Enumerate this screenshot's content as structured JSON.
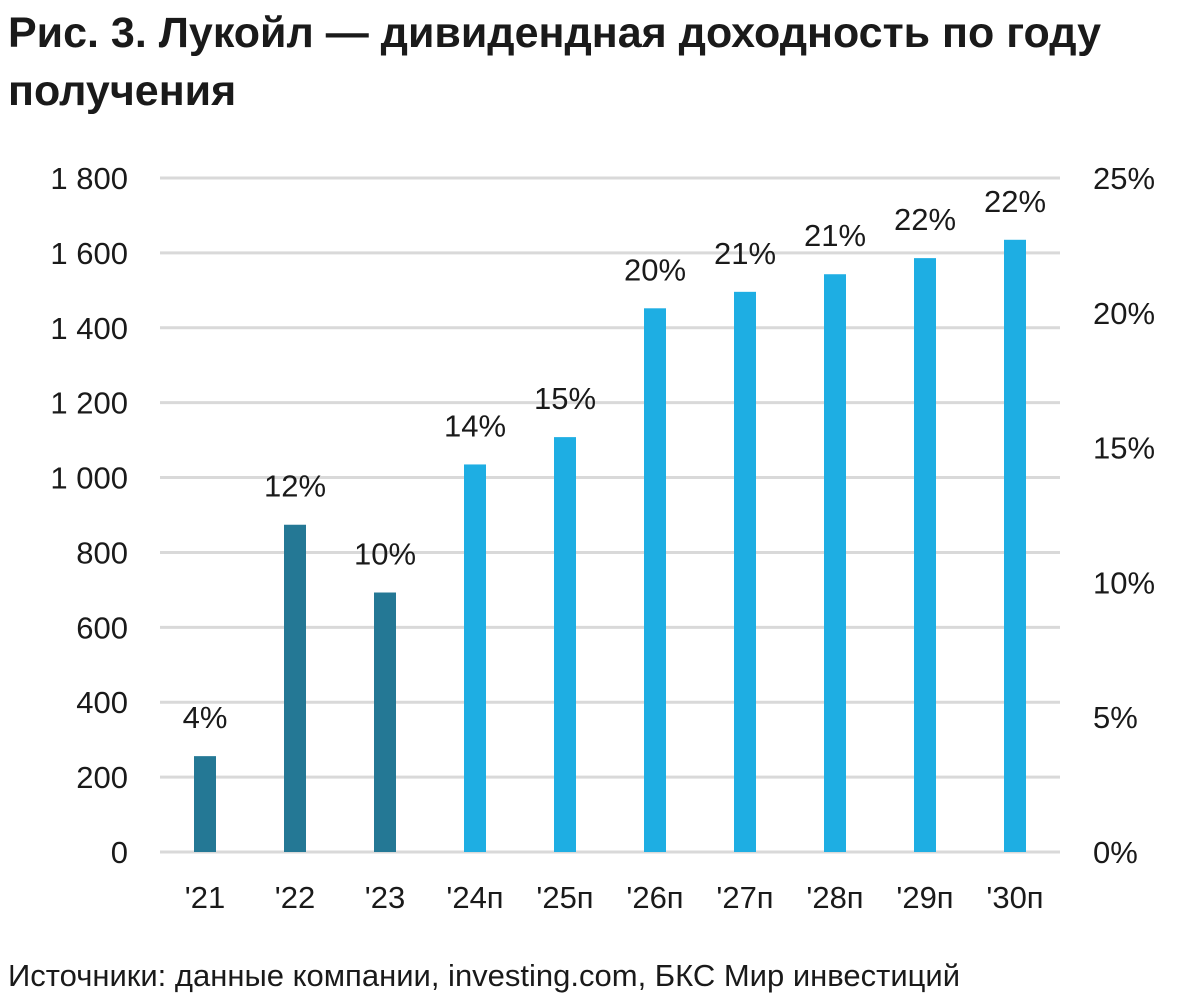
{
  "title": "Рис. 3. Лукойл — дивидендная доходность по году получения",
  "source": "Источники: данные компании, investing.com, БКС Мир инвестиций",
  "chart_data": {
    "type": "bar",
    "categories": [
      "'21",
      "'22",
      "'23",
      "'24п",
      "'25п",
      "'26п",
      "'27п",
      "'28п",
      "'29п",
      "'30п"
    ],
    "values": [
      256,
      874,
      693,
      1035,
      1108,
      1452,
      1496,
      1543,
      1586,
      1635
    ],
    "data_labels": [
      "4%",
      "12%",
      "10%",
      "14%",
      "15%",
      "20%",
      "21%",
      "21%",
      "22%",
      "22%"
    ],
    "bar_colors": [
      "#247895",
      "#247895",
      "#247895",
      "#1eaee3",
      "#1eaee3",
      "#1eaee3",
      "#1eaee3",
      "#1eaee3",
      "#1eaee3",
      "#1eaee3"
    ],
    "ylim": [
      0,
      1800
    ],
    "yticks": [
      "0",
      "200",
      "400",
      "600",
      "800",
      "1 000",
      "1 200",
      "1 400",
      "1 600",
      "1 800"
    ],
    "y2lim": [
      0,
      25
    ],
    "y2ticks": [
      "0%",
      "5%",
      "10%",
      "15%",
      "20%",
      "25%"
    ],
    "grid": true,
    "gridline_color": "#d9d9d9"
  }
}
